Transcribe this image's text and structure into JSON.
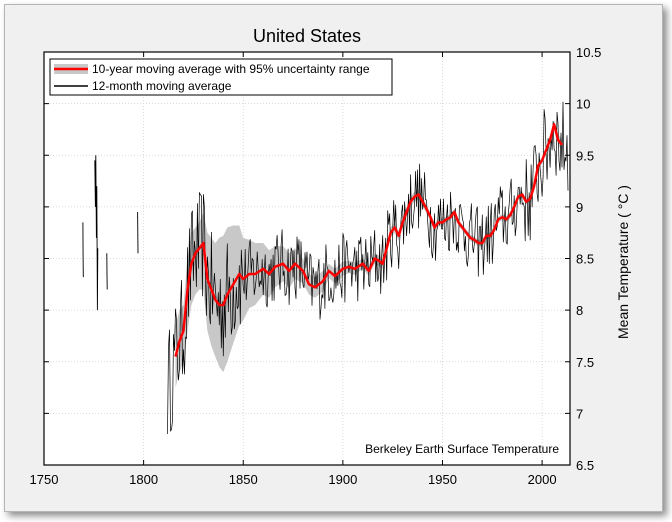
{
  "chart_data": {
    "type": "line",
    "title": "United States",
    "xlabel": "",
    "ylabel": "Mean Temperature ( °C )",
    "xlim": [
      1750,
      2014
    ],
    "ylim": [
      6.5,
      10.5
    ],
    "xticks": [
      "1750",
      "1800",
      "1850",
      "1900",
      "1950",
      "2000"
    ],
    "yticks": [
      "6.5",
      "7",
      "7.5",
      "8",
      "8.5",
      "9",
      "9.5",
      "10",
      "10.5"
    ],
    "grid": true,
    "legend_position": "top-left",
    "legend": {
      "smooth_label": "10-year moving average with 95% uncertainty range",
      "monthly_label": "12-month moving average"
    },
    "annotation": "Berkeley Earth Surface Temperature",
    "colors": {
      "smooth": "#ff0000",
      "band": "#c8c8c8",
      "monthly": "#000000",
      "grid": "#cfcfcf"
    },
    "series": [
      {
        "name": "10-year moving average",
        "x": [
          1816,
          1818,
          1820,
          1822,
          1824,
          1826,
          1828,
          1830,
          1832,
          1834,
          1836,
          1838,
          1840,
          1842,
          1845,
          1848,
          1850,
          1853,
          1856,
          1860,
          1863,
          1866,
          1870,
          1873,
          1876,
          1880,
          1883,
          1886,
          1890,
          1893,
          1896,
          1900,
          1903,
          1906,
          1910,
          1913,
          1916,
          1918,
          1920,
          1922,
          1924,
          1926,
          1928,
          1930,
          1932,
          1934,
          1936,
          1938,
          1940,
          1942,
          1944,
          1946,
          1948,
          1950,
          1952,
          1954,
          1956,
          1958,
          1960,
          1962,
          1964,
          1966,
          1968,
          1970,
          1972,
          1974,
          1976,
          1978,
          1980,
          1982,
          1984,
          1986,
          1988,
          1990,
          1992,
          1994,
          1996,
          1998,
          2000,
          2002,
          2004,
          2006,
          2008,
          2010
        ],
        "y": [
          7.55,
          7.7,
          7.8,
          8.2,
          8.45,
          8.55,
          8.6,
          8.65,
          8.3,
          8.2,
          8.1,
          8.05,
          8.05,
          8.15,
          8.25,
          8.35,
          8.3,
          8.35,
          8.35,
          8.4,
          8.35,
          8.42,
          8.45,
          8.38,
          8.45,
          8.38,
          8.25,
          8.22,
          8.28,
          8.38,
          8.33,
          8.4,
          8.42,
          8.4,
          8.45,
          8.38,
          8.5,
          8.48,
          8.45,
          8.6,
          8.75,
          8.8,
          8.72,
          8.85,
          8.95,
          9.05,
          9.1,
          9.12,
          9.05,
          8.98,
          8.9,
          8.8,
          8.85,
          8.85,
          8.88,
          8.9,
          8.95,
          8.85,
          8.8,
          8.75,
          8.7,
          8.68,
          8.65,
          8.65,
          8.72,
          8.72,
          8.78,
          8.88,
          8.9,
          8.88,
          8.92,
          9.0,
          9.1,
          9.12,
          9.05,
          9.08,
          9.2,
          9.4,
          9.45,
          9.55,
          9.65,
          9.8,
          9.65,
          9.6
        ],
        "upper": [
          7.85,
          8.0,
          8.05,
          8.5,
          8.75,
          8.8,
          8.85,
          8.95,
          8.75,
          8.7,
          8.65,
          8.7,
          8.72,
          8.8,
          8.82,
          8.82,
          8.7,
          8.68,
          8.65,
          8.65,
          8.58,
          8.62,
          8.62,
          8.55,
          8.6,
          8.5,
          8.35,
          8.32,
          8.38,
          8.45,
          8.4,
          8.47,
          8.48,
          8.46,
          8.5,
          8.43,
          8.55,
          8.53,
          8.5,
          8.65,
          8.8,
          8.85,
          8.77,
          8.9,
          9.0,
          9.1,
          9.15,
          9.17,
          9.1,
          9.02,
          8.94,
          8.84,
          8.89,
          8.89,
          8.91,
          8.93,
          8.98,
          8.88,
          8.83,
          8.78,
          8.73,
          8.71,
          8.68,
          8.68,
          8.75,
          8.75,
          8.81,
          8.91,
          8.93,
          8.91,
          8.95,
          9.03,
          9.13,
          9.15,
          9.08,
          9.11,
          9.23,
          9.43,
          9.48,
          9.58,
          9.68,
          9.84,
          9.7,
          9.66
        ],
        "lower": [
          7.25,
          7.4,
          7.5,
          7.8,
          8.05,
          8.15,
          8.2,
          8.2,
          7.8,
          7.65,
          7.55,
          7.45,
          7.4,
          7.5,
          7.68,
          7.85,
          7.9,
          8.02,
          8.05,
          8.15,
          8.12,
          8.22,
          8.28,
          8.21,
          8.3,
          8.26,
          8.15,
          8.12,
          8.18,
          8.31,
          8.26,
          8.33,
          8.36,
          8.34,
          8.4,
          8.33,
          8.45,
          8.43,
          8.4,
          8.55,
          8.7,
          8.75,
          8.67,
          8.8,
          8.9,
          9.0,
          9.05,
          9.07,
          9.0,
          8.94,
          8.86,
          8.76,
          8.81,
          8.81,
          8.85,
          8.87,
          8.92,
          8.82,
          8.77,
          8.72,
          8.67,
          8.65,
          8.62,
          8.62,
          8.69,
          8.69,
          8.75,
          8.85,
          8.87,
          8.85,
          8.89,
          8.97,
          9.07,
          9.09,
          9.02,
          9.05,
          9.17,
          9.37,
          9.42,
          9.52,
          9.62,
          9.76,
          9.6,
          9.54
        ]
      },
      {
        "name": "12-month moving average",
        "early_segments": [
          {
            "x": [
              1769.5,
              1769.6,
              1769.7
            ],
            "y": [
              8.85,
              8.5,
              8.32
            ]
          },
          {
            "x": [
              1775.5,
              1775.8,
              1776.0,
              1776.3,
              1776.5,
              1776.8,
              1777.0
            ],
            "y": [
              9.45,
              9.0,
              9.5,
              8.7,
              9.2,
              8.0,
              8.6
            ]
          },
          {
            "x": [
              1781.5,
              1781.6,
              1781.7
            ],
            "y": [
              8.55,
              8.35,
              8.2
            ]
          },
          {
            "x": [
              1797.0,
              1797.2
            ],
            "y": [
              8.95,
              8.55
            ]
          }
        ],
        "x_start": 1812,
        "x_end": 2013,
        "step": 0.5,
        "noise_amplitude": 0.35
      }
    ]
  }
}
